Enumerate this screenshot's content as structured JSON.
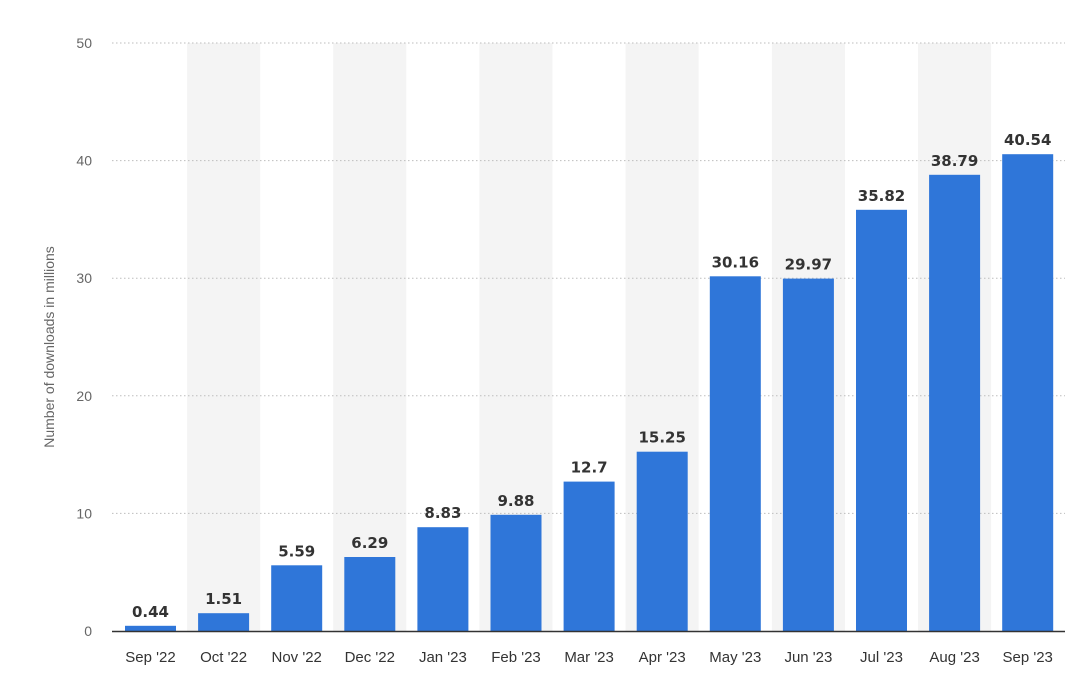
{
  "chart_data": {
    "type": "bar",
    "categories": [
      "Sep '22",
      "Oct '22",
      "Nov '22",
      "Dec '22",
      "Jan '23",
      "Feb '23",
      "Mar '23",
      "Apr '23",
      "May '23",
      "Jun '23",
      "Jul '23",
      "Aug '23",
      "Sep '23"
    ],
    "values": [
      0.44,
      1.51,
      5.59,
      6.29,
      8.83,
      9.88,
      12.7,
      15.25,
      30.16,
      29.97,
      35.82,
      38.79,
      40.54
    ],
    "value_labels": [
      "0.44",
      "1.51",
      "5.59",
      "6.29",
      "8.83",
      "9.88",
      "12.7",
      "15.25",
      "30.16",
      "29.97",
      "35.82",
      "38.79",
      "40.54"
    ],
    "ylabel": "Number of downloads in millions",
    "xlabel": "",
    "ylim": [
      0,
      50
    ],
    "yticks": [
      0,
      10,
      20,
      30,
      40,
      50
    ],
    "grid": "horizontal dotted",
    "legend": "none",
    "bar_color": "#2f76d9",
    "band_color": "#f4f4f4"
  }
}
